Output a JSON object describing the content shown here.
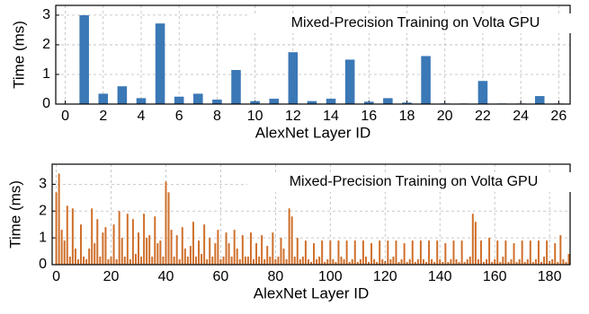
{
  "chart_data": [
    {
      "type": "bar",
      "title": "Mixed-Precision Training on Volta GPU",
      "x_label": "AlexNet Layer ID",
      "y_label": "Time (ms)",
      "color": "#3b78b6",
      "x": [
        0,
        1,
        2,
        3,
        4,
        5,
        6,
        7,
        8,
        9,
        10,
        11,
        12,
        13,
        14,
        15,
        16,
        17,
        18,
        19,
        20,
        21,
        22,
        23,
        24,
        25,
        26
      ],
      "values": [
        0,
        3.0,
        0.35,
        0.6,
        0.2,
        2.72,
        0.25,
        0.35,
        0.15,
        1.15,
        0.1,
        0.18,
        1.75,
        0.1,
        0.18,
        1.5,
        0.08,
        0.2,
        0.05,
        1.62,
        0.02,
        0.02,
        0.78,
        0.02,
        0.02,
        0.27,
        0.02
      ],
      "xlim": [
        -0.5,
        26.6
      ],
      "xticks": [
        0,
        2,
        4,
        6,
        8,
        10,
        12,
        14,
        16,
        18,
        20,
        22,
        24,
        26
      ],
      "ylim": [
        0,
        3.33
      ],
      "yticks": [
        0,
        1,
        2,
        3
      ],
      "grid": true
    },
    {
      "type": "bar",
      "title": "Mixed-Precision Training on Volta GPU",
      "x_label": "AlexNet Layer ID",
      "y_label": "Time (ms)",
      "color": "#cf6f2a",
      "x": [
        0,
        1,
        2,
        3,
        4,
        5,
        6,
        7,
        8,
        9,
        10,
        11,
        12,
        13,
        14,
        15,
        16,
        17,
        18,
        19,
        20,
        21,
        22,
        23,
        24,
        25,
        26,
        27,
        28,
        29,
        30,
        31,
        32,
        33,
        34,
        35,
        36,
        37,
        38,
        39,
        40,
        41,
        42,
        43,
        44,
        45,
        46,
        47,
        48,
        49,
        50,
        51,
        52,
        53,
        54,
        55,
        56,
        57,
        58,
        59,
        60,
        61,
        62,
        63,
        64,
        65,
        66,
        67,
        68,
        69,
        70,
        71,
        72,
        73,
        74,
        75,
        76,
        77,
        78,
        79,
        80,
        81,
        82,
        83,
        84,
        85,
        86,
        87,
        88,
        89,
        90,
        91,
        92,
        93,
        94,
        95,
        96,
        97,
        98,
        99,
        100,
        101,
        102,
        103,
        104,
        105,
        106,
        107,
        108,
        109,
        110,
        111,
        112,
        113,
        114,
        115,
        116,
        117,
        118,
        119,
        120,
        121,
        122,
        123,
        124,
        125,
        126,
        127,
        128,
        129,
        130,
        131,
        132,
        133,
        134,
        135,
        136,
        137,
        138,
        139,
        140,
        141,
        142,
        143,
        144,
        145,
        146,
        147,
        148,
        149,
        150,
        151,
        152,
        153,
        154,
        155,
        156,
        157,
        158,
        159,
        160,
        161,
        162,
        163,
        164,
        165,
        166,
        167,
        168,
        169,
        170,
        171,
        172,
        173,
        174,
        175,
        176,
        177,
        178,
        179,
        180,
        181,
        182,
        183,
        184,
        185,
        186,
        187
      ],
      "values": [
        2.7,
        3.4,
        1.3,
        0.9,
        2.2,
        0.3,
        2.1,
        0.6,
        0.2,
        1.5,
        0.3,
        0.2,
        0.6,
        2.1,
        0.8,
        1.7,
        0.3,
        1.2,
        1.4,
        0.2,
        0.3,
        1.5,
        0.2,
        2.0,
        1.0,
        0.3,
        1.9,
        0.2,
        1.7,
        0.4,
        1.2,
        0.3,
        1.9,
        1.0,
        1.1,
        0.3,
        1.8,
        0.8,
        0.9,
        0.3,
        3.1,
        2.7,
        1.3,
        0.3,
        1.1,
        0.2,
        1.4,
        0.6,
        0.3,
        0.7,
        1.6,
        0.3,
        0.9,
        0.4,
        1.5,
        0.2,
        1.0,
        0.3,
        0.8,
        1.3,
        0.2,
        0.3,
        1.2,
        0.8,
        0.3,
        1.3,
        0.6,
        0.2,
        1.1,
        0.3,
        0.3,
        1.2,
        0.2,
        0.8,
        0.3,
        1.1,
        0.2,
        0.7,
        0.3,
        1.2,
        0.2,
        0.3,
        1.0,
        0.6,
        0.2,
        2.1,
        1.8,
        0.3,
        1.0,
        0.2,
        0.3,
        0.9,
        0.2,
        0.1,
        0.8,
        0.2,
        0.3,
        0.9,
        0.1,
        0.2,
        0.9,
        0.2,
        0.1,
        0.9,
        0.3,
        0.2,
        0.9,
        0.1,
        0.2,
        0.9,
        0.1,
        0.2,
        0.9,
        0.3,
        0.1,
        0.8,
        0.2,
        0.1,
        0.9,
        0.2,
        0.1,
        0.9,
        0.2,
        0.3,
        0.9,
        0.1,
        0.2,
        0.8,
        0.1,
        0.2,
        0.9,
        0.1,
        0.2,
        0.9,
        0.2,
        0.1,
        0.9,
        0.2,
        0.1,
        0.9,
        0.2,
        0.1,
        0.8,
        0.1,
        0.2,
        0.9,
        0.2,
        0.1,
        0.9,
        0.1,
        0.2,
        0.3,
        1.9,
        1.6,
        0.2,
        0.9,
        0.1,
        0.2,
        1.0,
        0.1,
        0.2,
        0.9,
        0.1,
        0.3,
        0.9,
        0.1,
        0.2,
        0.8,
        0.1,
        0.2,
        0.9,
        0.1,
        0.2,
        0.9,
        0.1,
        0.2,
        0.9,
        0.1,
        0.3,
        0.9,
        0.1,
        0.2,
        0.8,
        0.1,
        1.1,
        0.2,
        0.1,
        0.4
      ],
      "xlim": [
        -1.5,
        187.5
      ],
      "xticks": [
        0,
        20,
        40,
        60,
        80,
        100,
        120,
        140,
        160,
        180
      ],
      "ylim": [
        0,
        3.75
      ],
      "yticks": [
        0,
        1,
        2,
        3
      ],
      "grid": true
    }
  ]
}
